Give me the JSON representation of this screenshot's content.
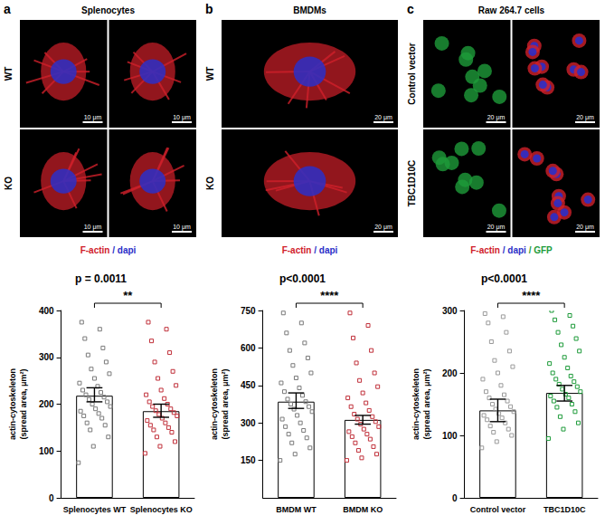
{
  "image_panels": [
    {
      "label": "a",
      "title": "Splenocytes",
      "rows": [
        "WT",
        "KO"
      ],
      "columns": 2,
      "scale_bar": "10 μm",
      "stain_legend": [
        {
          "text": "F-actin",
          "color": "#d0202a"
        },
        {
          "text": "/ dapi",
          "color": "#2b2fc8"
        }
      ]
    },
    {
      "label": "b",
      "title": "BMDMs",
      "rows": [
        "WT",
        "KO"
      ],
      "columns": 1,
      "scale_bar": "20 μm",
      "stain_legend": [
        {
          "text": "F-actin",
          "color": "#d0202a"
        },
        {
          "text": "/ dapi",
          "color": "#2b2fc8"
        }
      ]
    },
    {
      "label": "c",
      "title": "Raw 264.7 cells",
      "rows": [
        "Control vector",
        "TBC1D10C"
      ],
      "columns": 2,
      "scale_bar": "20 μm",
      "stain_legend": [
        {
          "text": "F-actin",
          "color": "#d0202a"
        },
        {
          "text": "/ dapi",
          "color": "#2b2fc8"
        },
        {
          "text": "/ GFP",
          "color": "#1e9b3a"
        }
      ]
    }
  ],
  "chart_data": [
    {
      "type": "bar",
      "title": "p = 0.0011",
      "annotation": "**",
      "categories": [
        "Splenocytes WT",
        "Splenocytes KO"
      ],
      "values": [
        218,
        185
      ],
      "error_low": [
        205,
        172
      ],
      "error_high": [
        235,
        200
      ],
      "colors": [
        "#7a7a7a",
        "#c0303a"
      ],
      "points": [
        [
          75,
          110,
          130,
          145,
          155,
          160,
          170,
          175,
          180,
          185,
          190,
          195,
          200,
          205,
          210,
          215,
          220,
          225,
          230,
          238,
          245,
          255,
          265,
          275,
          290,
          305,
          320,
          340,
          360,
          375
        ],
        [
          95,
          110,
          120,
          130,
          140,
          145,
          150,
          155,
          160,
          165,
          170,
          175,
          178,
          182,
          186,
          190,
          195,
          200,
          205,
          212,
          220,
          230,
          240,
          255,
          270,
          290,
          310,
          335,
          360,
          375
        ]
      ],
      "ylabel": "actin-cytoskeleton\n(spread area, μm²)",
      "ylim": [
        0,
        400
      ],
      "yticks": [
        0,
        100,
        200,
        300,
        400
      ],
      "grid": false
    },
    {
      "type": "bar",
      "title": "p<0.0001",
      "annotation": "****",
      "categories": [
        "BMDM WT",
        "BMDM KO"
      ],
      "values": [
        385,
        312
      ],
      "error_low": [
        358,
        295
      ],
      "error_high": [
        420,
        330
      ],
      "colors": [
        "#7a7a7a",
        "#c0303a"
      ],
      "points": [
        [
          150,
          175,
          200,
          220,
          240,
          255,
          270,
          285,
          300,
          315,
          330,
          345,
          355,
          365,
          375,
          385,
          395,
          410,
          425,
          440,
          460,
          480,
          500,
          530,
          560,
          590,
          620,
          660,
          700,
          740
        ],
        [
          150,
          160,
          175,
          190,
          205,
          220,
          235,
          245,
          255,
          265,
          275,
          285,
          295,
          305,
          315,
          325,
          335,
          350,
          365,
          380,
          400,
          420,
          445,
          470,
          500,
          540,
          590,
          640,
          690,
          740
        ]
      ],
      "ylabel": "actin-cytoskeleton\n(spread area, μm²)",
      "ylim": [
        0,
        750
      ],
      "yticks": [
        150,
        300,
        450,
        600,
        750
      ],
      "grid": false
    },
    {
      "type": "bar",
      "title": "p<0.0001",
      "annotation": "****",
      "categories": [
        "Control vector",
        "TBC1D10C"
      ],
      "values": [
        140,
        168
      ],
      "error_low": [
        122,
        155
      ],
      "error_high": [
        158,
        180
      ],
      "colors": [
        "#9a9a9a",
        "#1e9b3a"
      ],
      "points": [
        [
          80,
          90,
          100,
          105,
          110,
          115,
          120,
          125,
          128,
          132,
          135,
          138,
          142,
          146,
          150,
          155,
          160,
          165,
          170,
          180,
          190,
          200,
          210,
          220,
          235,
          250,
          265,
          280,
          290,
          295
        ],
        [
          95,
          110,
          120,
          130,
          138,
          145,
          150,
          155,
          160,
          163,
          166,
          170,
          174,
          178,
          182,
          186,
          190,
          195,
          200,
          208,
          215,
          225,
          235,
          245,
          255,
          265,
          275,
          285,
          292,
          300
        ]
      ],
      "ylabel": "actin-cytoskeleton\n(spread area, μm²)",
      "ylim": [
        0,
        300
      ],
      "yticks": [
        0,
        100,
        200,
        300
      ],
      "grid": false
    }
  ]
}
